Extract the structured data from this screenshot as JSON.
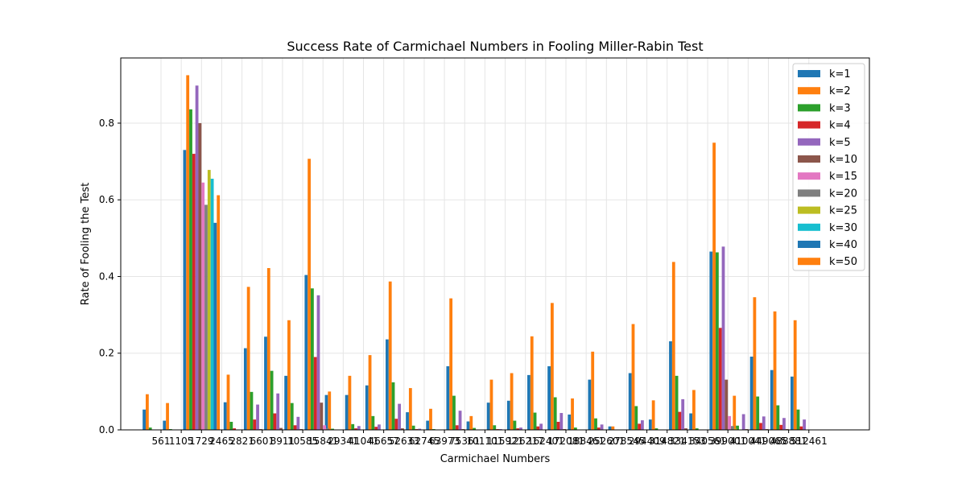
{
  "chart_data": {
    "type": "bar",
    "title": "Success Rate of Carmichael Numbers in Fooling Miller-Rabin Test",
    "xlabel": "Carmichael Numbers",
    "ylabel": "Rate of Fooling the Test",
    "ylim": [
      0,
      0.97
    ],
    "yticks": [
      "0.0",
      "0.2",
      "0.4",
      "0.6",
      "0.8"
    ],
    "grid": true,
    "legend_position": "top-right",
    "categories": [
      "561",
      "1105",
      "1729",
      "2465",
      "2821",
      "6601",
      "8911",
      "10585",
      "15841",
      "29341",
      "41041",
      "46657",
      "52633",
      "62745",
      "63973",
      "75361",
      "101101",
      "115921",
      "126217",
      "162401",
      "172081",
      "188461",
      "252601",
      "278545",
      "294409",
      "314821",
      "334153",
      "340561",
      "399001",
      "410041",
      "449065",
      "488881",
      "512461"
    ],
    "series": [
      {
        "name": "k=1",
        "color": "#1f77b4",
        "values": [
          0.053,
          0.024,
          0.73,
          0,
          0.072,
          0.213,
          0.243,
          0.141,
          0.404,
          0.091,
          0.091,
          0.116,
          0.236,
          0.046,
          0.024,
          0.166,
          0.022,
          0.071,
          0.076,
          0.143,
          0.166,
          0.04,
          0.131,
          0.009,
          0.148,
          0.027,
          0.231,
          0.043,
          0.465,
          0,
          0.191,
          0.156,
          0.139
        ]
      },
      {
        "name": "k=2",
        "color": "#ff7f0e",
        "values": [
          0.093,
          0.07,
          0.925,
          0,
          0.144,
          0.373,
          0.422,
          0.286,
          0.707,
          0.1,
          0.141,
          0.195,
          0.387,
          0.109,
          0.055,
          0.343,
          0.036,
          0.131,
          0.148,
          0.244,
          0.331,
          0.082,
          0.204,
          0.009,
          0.276,
          0.077,
          0.438,
          0.104,
          0.749,
          0.089,
          0.346,
          0.309,
          0.286
        ]
      },
      {
        "name": "k=3",
        "color": "#2ca02c",
        "values": [
          0.006,
          0.002,
          0.836,
          0,
          0.021,
          0.099,
          0.154,
          0.07,
          0.369,
          0.003,
          0.015,
          0.036,
          0.124,
          0.011,
          0.002,
          0.089,
          0.005,
          0.012,
          0.024,
          0.045,
          0.085,
          0.006,
          0.03,
          0.001,
          0.062,
          0.004,
          0.141,
          0.004,
          0.463,
          0.011,
          0.087,
          0.064,
          0.053
        ]
      },
      {
        "name": "k=4",
        "color": "#d62728",
        "values": [
          0.001,
          0,
          0.72,
          0,
          0.004,
          0.027,
          0.043,
          0.012,
          0.19,
          0.001,
          0.004,
          0.008,
          0.029,
          0.002,
          0,
          0.012,
          0.001,
          0.002,
          0.004,
          0.009,
          0.021,
          0.001,
          0.006,
          0,
          0.016,
          0.001,
          0.047,
          0.001,
          0.266,
          0.001,
          0.018,
          0.013,
          0.009
        ]
      },
      {
        "name": "k=5",
        "color": "#9467bd",
        "values": [
          0,
          0,
          0.898,
          0,
          0.001,
          0.066,
          0.095,
          0.034,
          0.351,
          0,
          0.01,
          0.014,
          0.068,
          0.003,
          0,
          0.05,
          0.001,
          0.002,
          0.006,
          0.016,
          0.044,
          0.001,
          0.014,
          0,
          0.025,
          0.001,
          0.08,
          0.001,
          0.478,
          0.041,
          0.035,
          0.031,
          0.027
        ]
      },
      {
        "name": "k=10",
        "color": "#8c564b",
        "values": [
          0,
          0,
          0.8,
          0,
          0,
          0.002,
          0.005,
          0.002,
          0.071,
          0,
          0,
          0.001,
          0.004,
          0,
          0,
          0.002,
          0,
          0,
          0,
          0.001,
          0.002,
          0,
          0.001,
          0,
          0.001,
          0,
          0.004,
          0,
          0.131,
          0.002,
          0.002,
          0.002,
          0.001
        ]
      },
      {
        "name": "k=15",
        "color": "#e377c2",
        "values": [
          0,
          0,
          0.645,
          0,
          0,
          0,
          0,
          0,
          0.012,
          0,
          0,
          0,
          0,
          0,
          0,
          0,
          0,
          0,
          0,
          0,
          0,
          0,
          0,
          0,
          0,
          0,
          0,
          0,
          0.036,
          0,
          0,
          0,
          0
        ]
      },
      {
        "name": "k=20",
        "color": "#7f7f7f",
        "values": [
          0,
          0,
          0.587,
          0,
          0,
          0,
          0,
          0,
          0.004,
          0,
          0,
          0,
          0,
          0,
          0,
          0,
          0,
          0,
          0,
          0,
          0,
          0,
          0,
          0,
          0,
          0,
          0,
          0,
          0.01,
          0,
          0,
          0,
          0
        ]
      },
      {
        "name": "k=25",
        "color": "#bcbd22",
        "values": [
          0,
          0,
          0.678,
          0,
          0,
          0,
          0,
          0,
          0.001,
          0,
          0,
          0,
          0,
          0,
          0,
          0,
          0,
          0,
          0,
          0,
          0,
          0,
          0,
          0,
          0,
          0,
          0,
          0,
          0.003,
          0,
          0,
          0,
          0
        ]
      },
      {
        "name": "k=30",
        "color": "#17becf",
        "values": [
          0,
          0,
          0.655,
          0,
          0,
          0,
          0,
          0,
          0,
          0,
          0,
          0,
          0,
          0,
          0,
          0,
          0,
          0,
          0,
          0,
          0,
          0,
          0,
          0,
          0,
          0,
          0,
          0,
          0.001,
          0,
          0,
          0,
          0
        ]
      },
      {
        "name": "k=40",
        "color": "#1f77b4",
        "values": [
          0,
          0,
          0.54,
          0,
          0,
          0,
          0,
          0,
          0,
          0,
          0,
          0,
          0,
          0,
          0,
          0,
          0,
          0,
          0,
          0,
          0,
          0,
          0,
          0,
          0,
          0,
          0,
          0,
          0,
          0,
          0,
          0,
          0
        ]
      },
      {
        "name": "k=50",
        "color": "#ff7f0e",
        "values": [
          0,
          0,
          0.612,
          0,
          0,
          0,
          0,
          0,
          0,
          0,
          0,
          0,
          0,
          0,
          0,
          0,
          0,
          0,
          0,
          0,
          0,
          0,
          0,
          0,
          0,
          0,
          0,
          0,
          0,
          0,
          0,
          0,
          0
        ]
      }
    ]
  }
}
